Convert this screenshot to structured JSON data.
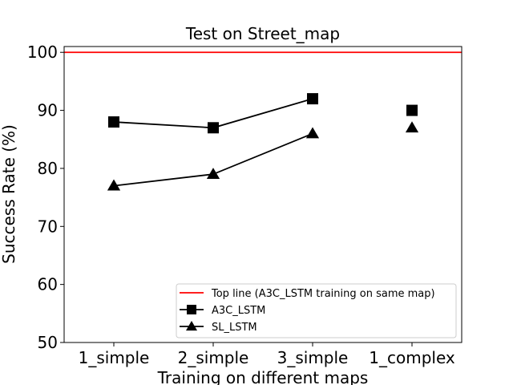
{
  "chart_data": {
    "type": "line",
    "title": "Test on Street_map",
    "xlabel": "Training on different maps",
    "ylabel": "Success Rate (%)",
    "categories": [
      "1_simple",
      "2_simple",
      "3_simple",
      "1_complex"
    ],
    "ylim": [
      50,
      101
    ],
    "yticks": [
      50,
      60,
      70,
      80,
      90,
      100
    ],
    "grid": false,
    "legend_position": "lower-right",
    "hline": {
      "name": "Top line (A3C_LSTM training on same map)",
      "value": 100,
      "color": "#ff0000"
    },
    "series": [
      {
        "name": "A3C_LSTM",
        "marker": "square",
        "color": "#000000",
        "values": [
          88,
          87,
          92,
          90
        ],
        "connected_through": 2
      },
      {
        "name": "SL_LSTM",
        "marker": "triangle",
        "color": "#000000",
        "values": [
          77,
          79,
          86,
          87
        ],
        "connected_through": 2
      }
    ]
  }
}
